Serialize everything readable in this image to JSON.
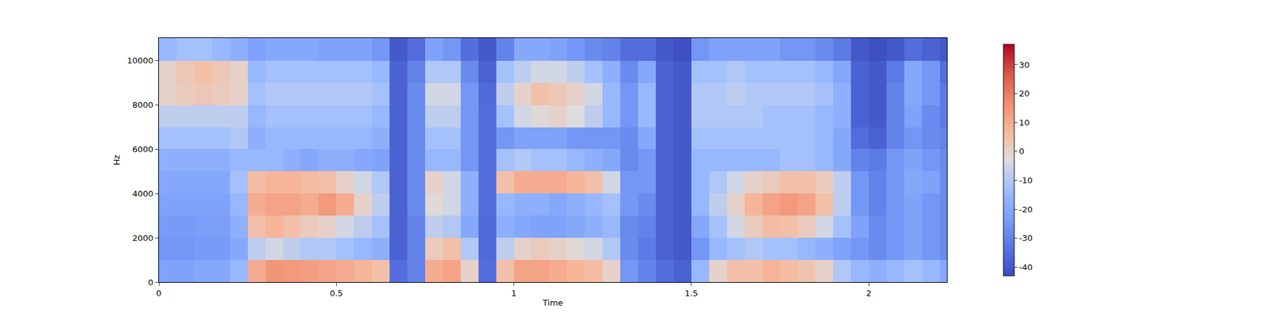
{
  "chart_data": {
    "type": "heatmap",
    "xlabel": "Time",
    "ylabel": "Hz",
    "xlim": [
      0,
      2.22
    ],
    "xticks": [
      0,
      0.5,
      1,
      1.5,
      2
    ],
    "ylim": [
      0,
      11025
    ],
    "yticks": [
      0,
      2000,
      4000,
      6000,
      8000,
      10000
    ],
    "x": [
      0,
      0.05,
      0.1,
      0.15,
      0.2,
      0.25,
      0.3,
      0.35,
      0.4,
      0.45,
      0.5,
      0.55,
      0.6,
      0.65,
      0.7,
      0.75,
      0.8,
      0.85,
      0.9,
      0.95,
      1,
      1.05,
      1.1,
      1.15,
      1.2,
      1.25,
      1.3,
      1.35,
      1.4,
      1.45,
      1.5,
      1.55,
      1.6,
      1.65,
      1.7,
      1.75,
      1.8,
      1.85,
      1.9,
      1.95,
      2,
      2.05,
      2.1,
      2.15,
      2.2,
      2.22
    ],
    "y": [
      0,
      1000,
      2000,
      3000,
      4000,
      5000,
      6000,
      7000,
      8000,
      9000,
      10000,
      11025
    ],
    "z": [
      [
        -22,
        -22,
        -20,
        -20,
        -15,
        10,
        15,
        14,
        13,
        12,
        10,
        8,
        5,
        -35,
        -30,
        10,
        12,
        0,
        -35,
        5,
        12,
        12,
        10,
        8,
        6,
        0,
        -25,
        -30,
        -35,
        -38,
        -15,
        0,
        5,
        5,
        8,
        6,
        4,
        0,
        -10,
        -15,
        -18,
        -15,
        -12,
        -15,
        -20
      ],
      [
        -25,
        -25,
        -24,
        -24,
        -20,
        -8,
        -5,
        -8,
        -10,
        -10,
        -12,
        -15,
        -18,
        -38,
        -30,
        2,
        5,
        -10,
        -36,
        -8,
        0,
        2,
        0,
        -2,
        -5,
        -10,
        -28,
        -32,
        -38,
        -40,
        -25,
        -15,
        -12,
        -10,
        -12,
        -12,
        -15,
        -18,
        -22,
        -25,
        -28,
        -25,
        -22,
        -25,
        -28
      ],
      [
        -24,
        -24,
        -23,
        -23,
        -18,
        5,
        8,
        5,
        2,
        0,
        -5,
        -8,
        -12,
        -38,
        -30,
        -8,
        -10,
        -20,
        -36,
        -18,
        -20,
        -22,
        -22,
        -20,
        -18,
        -15,
        -28,
        -30,
        -38,
        -40,
        -20,
        -12,
        -5,
        2,
        6,
        5,
        2,
        -5,
        -12,
        -22,
        -28,
        -25,
        -22,
        -25,
        -28
      ],
      [
        -22,
        -22,
        -22,
        -22,
        -15,
        10,
        12,
        12,
        10,
        14,
        10,
        0,
        -8,
        -38,
        -28,
        -2,
        -5,
        -18,
        -35,
        -15,
        -18,
        -18,
        -20,
        -18,
        -15,
        -12,
        -25,
        -28,
        -38,
        -40,
        -15,
        -8,
        0,
        8,
        12,
        14,
        12,
        5,
        -8,
        -25,
        -30,
        -25,
        -22,
        -25,
        -28
      ],
      [
        -20,
        -20,
        -20,
        -20,
        -12,
        6,
        8,
        8,
        6,
        5,
        0,
        -5,
        -10,
        -38,
        -28,
        0,
        -5,
        -18,
        -35,
        5,
        10,
        10,
        10,
        8,
        5,
        -5,
        -25,
        -25,
        -38,
        -40,
        -15,
        -10,
        -5,
        0,
        2,
        5,
        5,
        2,
        -8,
        -25,
        -30,
        -25,
        -20,
        -22,
        -28
      ],
      [
        -18,
        -18,
        -18,
        -18,
        -15,
        -15,
        -15,
        -18,
        -20,
        -18,
        -18,
        -20,
        -22,
        -38,
        -28,
        -15,
        -15,
        -25,
        -35,
        -12,
        -10,
        -12,
        -12,
        -15,
        -18,
        -20,
        -28,
        -25,
        -38,
        -40,
        -15,
        -15,
        -15,
        -15,
        -15,
        -12,
        -12,
        -15,
        -20,
        -30,
        -32,
        -25,
        -22,
        -25,
        -28
      ],
      [
        -12,
        -12,
        -12,
        -12,
        -10,
        -18,
        -15,
        -15,
        -15,
        -15,
        -15,
        -15,
        -18,
        -38,
        -28,
        -12,
        -12,
        -25,
        -35,
        -25,
        -22,
        -22,
        -22,
        -25,
        -25,
        -25,
        -28,
        -20,
        -38,
        -40,
        -12,
        -12,
        -12,
        -12,
        -12,
        -12,
        -12,
        -15,
        -20,
        -35,
        -38,
        -30,
        -25,
        -28,
        -30
      ],
      [
        -8,
        -8,
        -8,
        -8,
        -8,
        -15,
        -12,
        -12,
        -12,
        -12,
        -12,
        -12,
        -15,
        -38,
        -28,
        -8,
        -8,
        -25,
        -35,
        -12,
        -5,
        -2,
        0,
        -3,
        -8,
        -15,
        -25,
        -15,
        -38,
        -40,
        -10,
        -10,
        -10,
        -10,
        -12,
        -12,
        -12,
        -15,
        -18,
        -38,
        -40,
        -30,
        -22,
        -28,
        -32
      ],
      [
        0,
        2,
        3,
        2,
        0,
        -12,
        -10,
        -10,
        -10,
        -10,
        -10,
        -10,
        -12,
        -38,
        -28,
        -5,
        -5,
        -25,
        -36,
        -8,
        0,
        5,
        3,
        0,
        -5,
        -15,
        -25,
        -15,
        -38,
        -40,
        -10,
        -10,
        -8,
        -10,
        -10,
        -10,
        -10,
        -12,
        -18,
        -38,
        -40,
        -30,
        -20,
        -25,
        -32
      ],
      [
        0,
        3,
        5,
        3,
        0,
        -15,
        -12,
        -12,
        -12,
        -12,
        -12,
        -12,
        -15,
        -38,
        -30,
        -10,
        -10,
        -28,
        -38,
        -12,
        -8,
        -5,
        -5,
        -8,
        -12,
        -18,
        -28,
        -20,
        -38,
        -40,
        -12,
        -12,
        -10,
        -12,
        -12,
        -12,
        -12,
        -15,
        -20,
        -38,
        -40,
        -32,
        -20,
        -25,
        -35
      ],
      [
        -15,
        -12,
        -12,
        -15,
        -18,
        -22,
        -20,
        -20,
        -20,
        -22,
        -22,
        -22,
        -25,
        -40,
        -35,
        -22,
        -25,
        -35,
        -40,
        -30,
        -20,
        -20,
        -22,
        -25,
        -28,
        -30,
        -35,
        -35,
        -40,
        -42,
        -25,
        -22,
        -22,
        -22,
        -22,
        -25,
        -25,
        -28,
        -32,
        -40,
        -42,
        -40,
        -35,
        -38,
        -40
      ]
    ],
    "colorbar": {
      "range": [
        -43,
        37
      ],
      "ticks": [
        -40,
        -30,
        -20,
        -10,
        0,
        10,
        20,
        30
      ]
    }
  }
}
